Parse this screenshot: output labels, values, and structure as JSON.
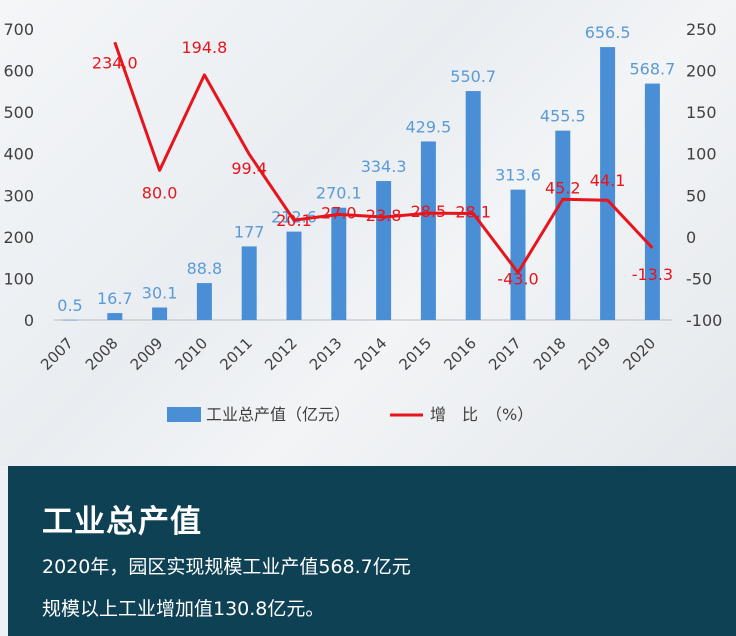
{
  "chart_data": {
    "type": "bar+line",
    "categories": [
      "2007",
      "2008",
      "2009",
      "2010",
      "2011",
      "2012",
      "2013",
      "2014",
      "2015",
      "2016",
      "2017",
      "2018",
      "2019",
      "2020"
    ],
    "series": [
      {
        "name": "工业总产值（亿元）",
        "type": "bar",
        "axis": "left",
        "color": "#4a8fd6",
        "values": [
          0.5,
          16.7,
          30.1,
          88.8,
          177,
          212.6,
          270.1,
          334.3,
          429.5,
          550.7,
          313.6,
          455.5,
          656.5,
          568.7
        ],
        "labels": [
          "0.5",
          "16.7",
          "30.1",
          "88.8",
          "177",
          "212.6",
          "270.1",
          "334.3",
          "429.5",
          "550.7",
          "313.6",
          "455.5",
          "656.5",
          "568.7"
        ]
      },
      {
        "name": "增　比　（%）",
        "type": "line",
        "axis": "right",
        "color": "#e8141c",
        "values": [
          null,
          234.0,
          80.0,
          194.8,
          99.4,
          20.1,
          27.0,
          23.8,
          28.5,
          28.1,
          -43.0,
          45.2,
          44.1,
          -13.3
        ],
        "labels": [
          "",
          "234.0",
          "80.0",
          "194.8",
          "99.4",
          "20.1",
          "27.0",
          "23.8",
          "28.5",
          "28.1",
          "-43.0",
          "45.2",
          "44.1",
          "-13.3"
        ]
      }
    ],
    "left_axis": {
      "ylim": [
        0,
        700
      ],
      "ticks": [
        "0",
        "100",
        "200",
        "300",
        "400",
        "500",
        "600",
        "700"
      ]
    },
    "right_axis": {
      "ylim": [
        -100,
        250
      ],
      "ticks": [
        "-100",
        "-50",
        "0",
        "50",
        "100",
        "150",
        "200",
        "250"
      ]
    },
    "grid": false,
    "legend_position": "bottom"
  },
  "info": {
    "title": "工业总产值",
    "line1": "2020年，园区实现规模工业产值568.7亿元",
    "line2": "规模以上工业增加值130.8亿元。"
  }
}
